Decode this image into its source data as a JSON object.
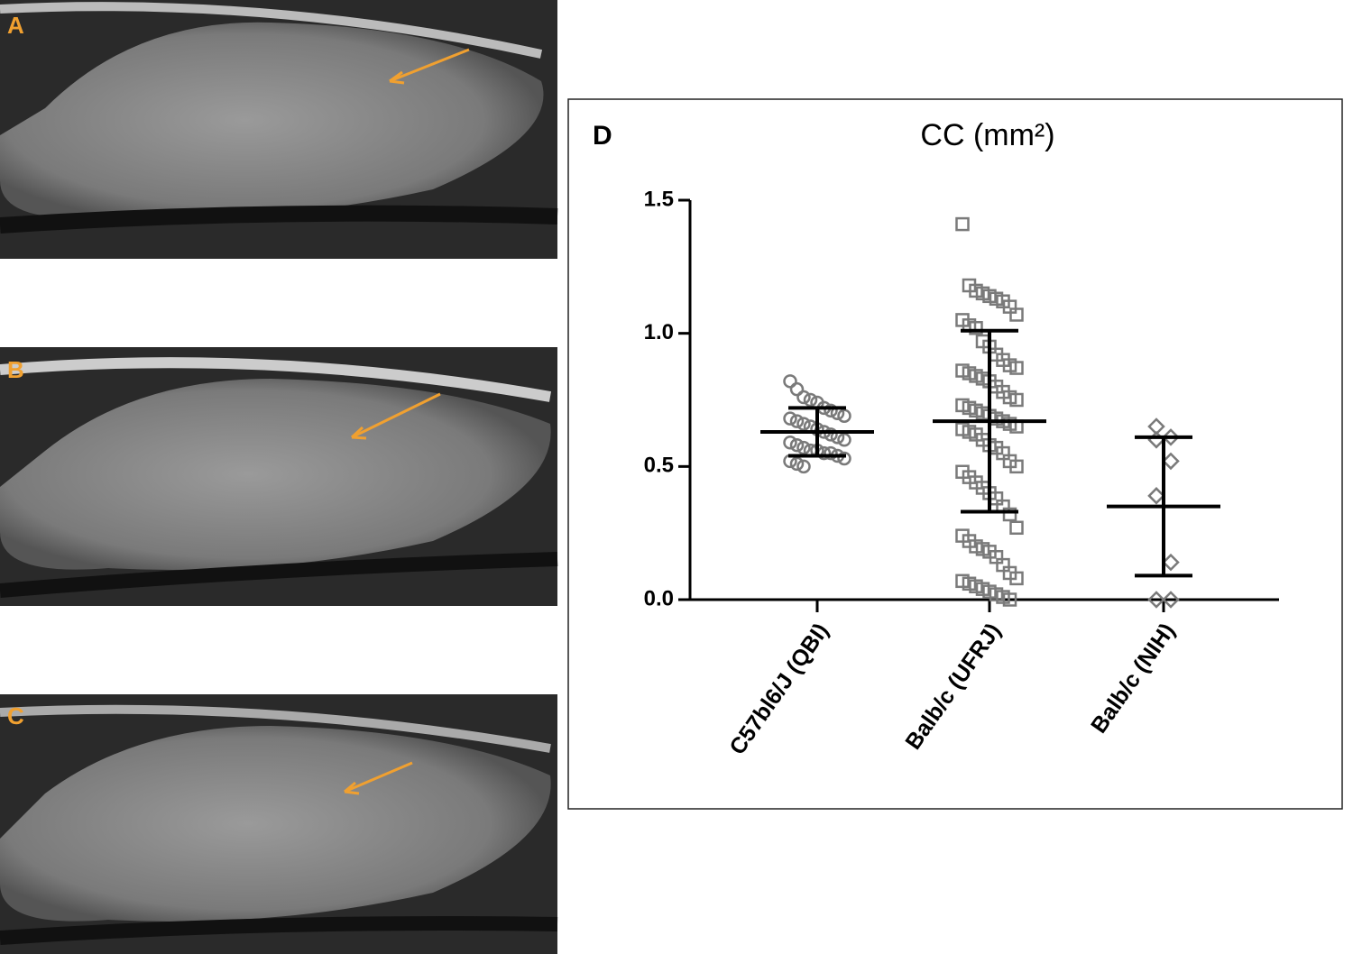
{
  "panels": [
    {
      "label": "A"
    },
    {
      "label": "B"
    },
    {
      "label": "C"
    }
  ],
  "chart_data": {
    "type": "dot",
    "panel_label": "D",
    "title": "CC (mm²)",
    "categories": [
      "C57bl6/J (QBI)",
      "Balb/c (UFRJ)",
      "Balb/c (NIH)"
    ],
    "groups": [
      {
        "marker": "circle",
        "mean": 0.63,
        "sd": 0.09,
        "values": [
          0.82,
          0.79,
          0.76,
          0.75,
          0.74,
          0.72,
          0.71,
          0.7,
          0.69,
          0.68,
          0.67,
          0.66,
          0.65,
          0.64,
          0.63,
          0.62,
          0.61,
          0.6,
          0.59,
          0.58,
          0.57,
          0.56,
          0.56,
          0.55,
          0.55,
          0.54,
          0.53,
          0.52,
          0.51,
          0.5
        ]
      },
      {
        "marker": "square",
        "mean": 0.67,
        "sd": 0.34,
        "values": [
          1.41,
          1.18,
          1.16,
          1.15,
          1.14,
          1.13,
          1.12,
          1.1,
          1.07,
          1.05,
          1.03,
          1.02,
          0.97,
          0.95,
          0.92,
          0.9,
          0.88,
          0.87,
          0.86,
          0.85,
          0.84,
          0.83,
          0.82,
          0.8,
          0.78,
          0.76,
          0.75,
          0.73,
          0.72,
          0.71,
          0.7,
          0.69,
          0.68,
          0.67,
          0.66,
          0.65,
          0.64,
          0.63,
          0.62,
          0.6,
          0.58,
          0.57,
          0.55,
          0.52,
          0.5,
          0.48,
          0.46,
          0.44,
          0.42,
          0.4,
          0.38,
          0.35,
          0.32,
          0.27,
          0.24,
          0.22,
          0.2,
          0.19,
          0.18,
          0.16,
          0.13,
          0.1,
          0.08,
          0.07,
          0.06,
          0.05,
          0.04,
          0.03,
          0.02,
          0.01,
          0.0
        ]
      },
      {
        "marker": "diamond",
        "mean": 0.35,
        "sd": 0.26,
        "values": [
          0.65,
          0.61,
          0.6,
          0.52,
          0.39,
          0.14,
          0.0,
          0.0
        ]
      }
    ],
    "color": "#7a7a7a",
    "error_color": "#000000",
    "ylim": [
      0,
      1.5
    ],
    "yticks": [
      {
        "value": 0,
        "label": "0.0"
      },
      0.5,
      {
        "value": 1,
        "label": "1.0"
      },
      1.5
    ]
  }
}
